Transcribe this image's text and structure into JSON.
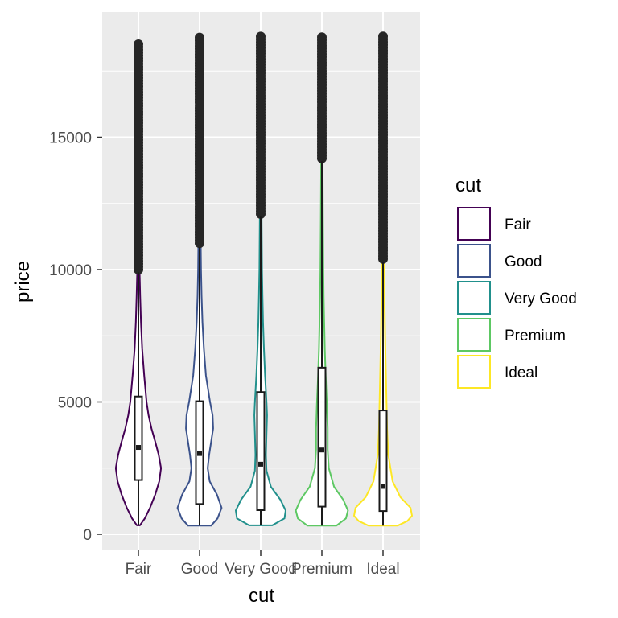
{
  "chart_data": {
    "type": "violin",
    "xlabel": "cut",
    "ylabel": "price",
    "categories": [
      "Fair",
      "Good",
      "Very Good",
      "Premium",
      "Ideal"
    ],
    "colors": [
      "#440154",
      "#3b528b",
      "#21908c",
      "#5dc863",
      "#fde725"
    ],
    "y_ticks": [
      0,
      5000,
      10000,
      15000
    ],
    "ylim": [
      -570,
      19400
    ],
    "grid": true,
    "legend": {
      "title": "cut",
      "position": "right",
      "entries": [
        "Fair",
        "Good",
        "Very Good",
        "Premium",
        "Ideal"
      ]
    },
    "boxplots": [
      {
        "name": "Fair",
        "min": 337,
        "q1": 2050,
        "median": 3282,
        "q3": 5206,
        "whisker_high": 9900,
        "outliers_from": 10000,
        "outliers_to": 18574
      },
      {
        "name": "Good",
        "min": 327,
        "q1": 1145,
        "median": 3051,
        "q3": 5028,
        "whisker_high": 10850,
        "outliers_from": 11000,
        "outliers_to": 18788
      },
      {
        "name": "Very Good",
        "min": 336,
        "q1": 912,
        "median": 2648,
        "q3": 5373,
        "whisker_high": 12000,
        "outliers_from": 12100,
        "outliers_to": 18818
      },
      {
        "name": "Premium",
        "min": 326,
        "q1": 1046,
        "median": 3185,
        "q3": 6296,
        "whisker_high": 14100,
        "outliers_from": 14200,
        "outliers_to": 18823
      },
      {
        "name": "Ideal",
        "min": 326,
        "q1": 878,
        "median": 1810,
        "q3": 4678,
        "whisker_high": 10300,
        "outliers_from": 10400,
        "outliers_to": 18806
      }
    ],
    "violin_profiles": [
      {
        "name": "Fair",
        "points": [
          [
            337,
            0.05
          ],
          [
            600,
            0.22
          ],
          [
            1000,
            0.4
          ],
          [
            1500,
            0.58
          ],
          [
            2000,
            0.72
          ],
          [
            2500,
            0.78
          ],
          [
            3000,
            0.7
          ],
          [
            3500,
            0.58
          ],
          [
            4000,
            0.45
          ],
          [
            4500,
            0.35
          ],
          [
            5000,
            0.28
          ],
          [
            6000,
            0.2
          ],
          [
            7000,
            0.13
          ],
          [
            8000,
            0.09
          ],
          [
            9000,
            0.06
          ],
          [
            10000,
            0.04
          ],
          [
            12000,
            0.02
          ],
          [
            15000,
            0.012
          ],
          [
            18574,
            0.005
          ]
        ]
      },
      {
        "name": "Good",
        "points": [
          [
            327,
            0.4
          ],
          [
            600,
            0.62
          ],
          [
            1000,
            0.76
          ],
          [
            1500,
            0.6
          ],
          [
            2000,
            0.35
          ],
          [
            2500,
            0.28
          ],
          [
            3000,
            0.33
          ],
          [
            3500,
            0.4
          ],
          [
            4000,
            0.47
          ],
          [
            4500,
            0.45
          ],
          [
            5000,
            0.36
          ],
          [
            6000,
            0.22
          ],
          [
            7000,
            0.15
          ],
          [
            8000,
            0.1
          ],
          [
            9000,
            0.07
          ],
          [
            10000,
            0.05
          ],
          [
            12000,
            0.03
          ],
          [
            15000,
            0.015
          ],
          [
            18788,
            0.005
          ]
        ]
      },
      {
        "name": "Very Good",
        "points": [
          [
            336,
            0.4
          ],
          [
            600,
            0.82
          ],
          [
            900,
            0.86
          ],
          [
            1300,
            0.68
          ],
          [
            1800,
            0.35
          ],
          [
            2400,
            0.2
          ],
          [
            3000,
            0.18
          ],
          [
            3800,
            0.2
          ],
          [
            4500,
            0.22
          ],
          [
            5000,
            0.2
          ],
          [
            6000,
            0.15
          ],
          [
            7000,
            0.11
          ],
          [
            8000,
            0.08
          ],
          [
            9000,
            0.06
          ],
          [
            10000,
            0.045
          ],
          [
            12000,
            0.03
          ],
          [
            15000,
            0.015
          ],
          [
            18818,
            0.005
          ]
        ]
      },
      {
        "name": "Premium",
        "points": [
          [
            326,
            0.5
          ],
          [
            600,
            0.83
          ],
          [
            900,
            0.9
          ],
          [
            1300,
            0.74
          ],
          [
            1800,
            0.42
          ],
          [
            2500,
            0.24
          ],
          [
            3200,
            0.2
          ],
          [
            4000,
            0.2
          ],
          [
            5000,
            0.17
          ],
          [
            6000,
            0.13
          ],
          [
            7000,
            0.1
          ],
          [
            8000,
            0.08
          ],
          [
            9000,
            0.06
          ],
          [
            10000,
            0.05
          ],
          [
            12000,
            0.035
          ],
          [
            15000,
            0.02
          ],
          [
            18823,
            0.005
          ]
        ]
      },
      {
        "name": "Ideal",
        "points": [
          [
            326,
            0.5
          ],
          [
            500,
            0.84
          ],
          [
            700,
            1.0
          ],
          [
            1000,
            0.95
          ],
          [
            1400,
            0.6
          ],
          [
            2000,
            0.33
          ],
          [
            3000,
            0.18
          ],
          [
            4000,
            0.14
          ],
          [
            5000,
            0.12
          ],
          [
            6000,
            0.1
          ],
          [
            7000,
            0.08
          ],
          [
            8000,
            0.065
          ],
          [
            9000,
            0.05
          ],
          [
            10000,
            0.04
          ],
          [
            12000,
            0.03
          ],
          [
            15000,
            0.018
          ],
          [
            18806,
            0.005
          ]
        ]
      }
    ]
  }
}
